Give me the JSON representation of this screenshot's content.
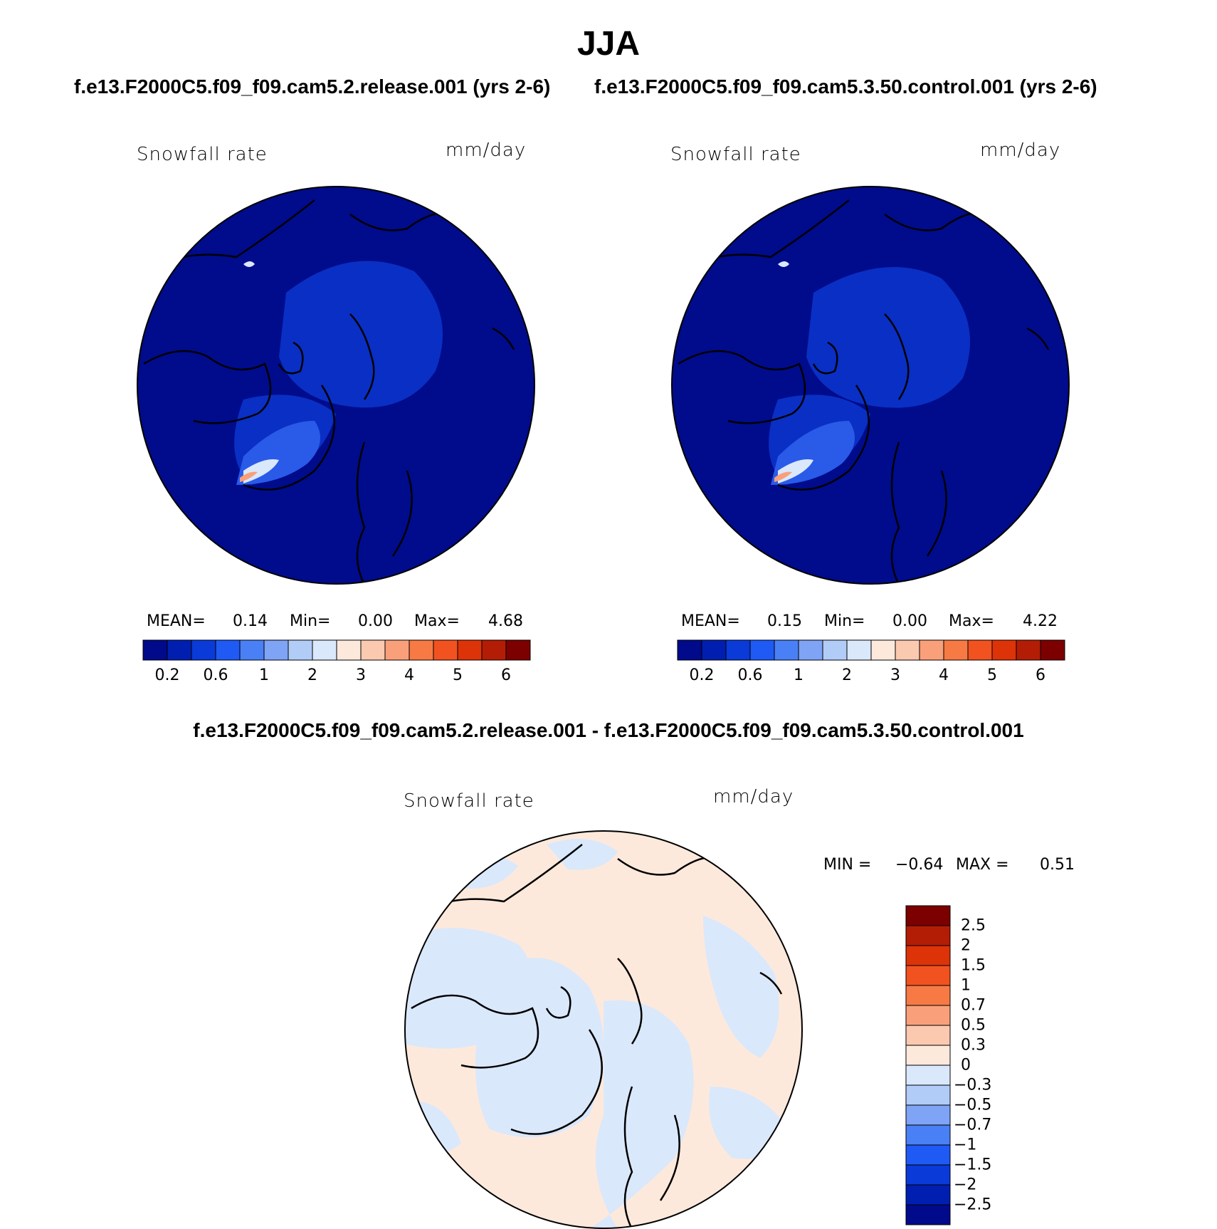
{
  "title": "JJA",
  "case1_title": "f.e13.F2000C5.f09_f09.cam5.2.release.001 (yrs 2-6)",
  "case2_title": "f.e13.F2000C5.f09_f09.cam5.3.50.control.001 (yrs 2-6)",
  "diff_title": "f.e13.F2000C5.f09_f09.cam5.2.release.001 - f.e13.F2000C5.f09_f09.cam5.3.50.control.001",
  "panels": [
    {
      "variable": "Snowfall rate",
      "units": "mm/day",
      "mean_label": "MEAN=",
      "mean": "0.14",
      "min_label": "Min=",
      "min": "0.00",
      "max_label": "Max=",
      "max": "4.68"
    },
    {
      "variable": "Snowfall rate",
      "units": "mm/day",
      "mean_label": "MEAN=",
      "mean": "0.15",
      "min_label": "Min=",
      "min": "0.00",
      "max_label": "Max=",
      "max": "4.22"
    }
  ],
  "diff_panel": {
    "variable": "Snowfall rate",
    "units": "mm/day",
    "min_label": "MIN =",
    "min": "−0.64",
    "max_label": "MAX =",
    "max": "0.51"
  },
  "colorbar_ticks": [
    "0.2",
    "0.6",
    "1",
    "2",
    "3",
    "4",
    "5",
    "6"
  ],
  "colorbar_colors": [
    "#000a8a",
    "#001fb0",
    "#0a3ad8",
    "#1f5af5",
    "#4a80f5",
    "#7fa3f5",
    "#b2ccf8",
    "#dae8fb",
    "#fde9dc",
    "#fbc9b0",
    "#f9a07a",
    "#f77a45",
    "#f25220",
    "#dd3308",
    "#b31d05",
    "#7d0000"
  ],
  "diff_colorbar_labels": [
    "2.5",
    "2",
    "1.5",
    "1",
    "0.7",
    "0.5",
    "0.3",
    "0",
    "−0.3",
    "−0.5",
    "−0.7",
    "−1",
    "−1.5",
    "−2",
    "−2.5"
  ],
  "diff_colorbar_colors": [
    "#7d0000",
    "#b31d05",
    "#dd3308",
    "#f25220",
    "#f77a45",
    "#f9a07a",
    "#fbc9b0",
    "#fde9dc",
    "#dae8fb",
    "#b2ccf8",
    "#7fa3f5",
    "#4a80f5",
    "#1f5af5",
    "#0a3ad8",
    "#001fb0",
    "#000a8a"
  ],
  "map_colors": {
    "ocean": "#000c8c",
    "mid": "#0a2fc4",
    "light": "#2a5ae8",
    "diff_pos": "#fde9dc",
    "diff_neg": "#dae8fb"
  }
}
